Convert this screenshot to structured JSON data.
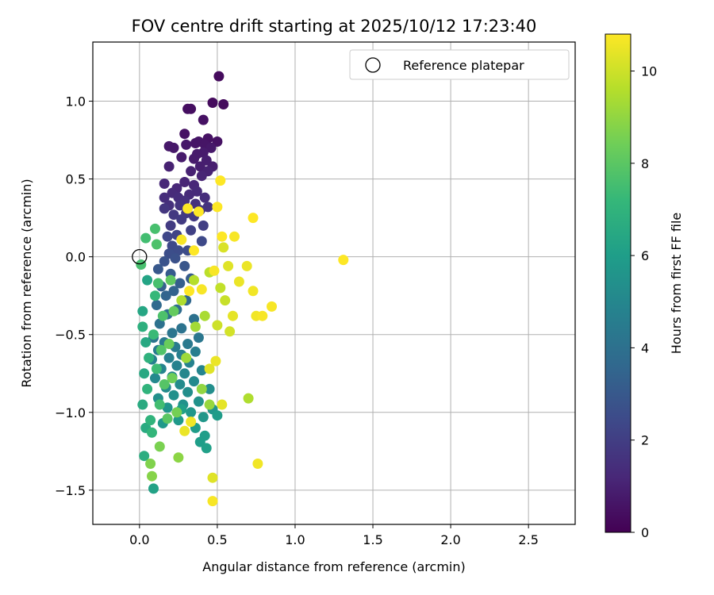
{
  "chart_data": {
    "type": "scatter",
    "title": "FOV centre drift starting at 2025/10/12 17:23:40",
    "xlabel": "Angular distance from reference (arcmin)",
    "ylabel": "Rotation from reference (arcmin)",
    "xlim": [
      -0.3,
      2.8
    ],
    "ylim": [
      -1.72,
      1.38
    ],
    "x_ticks": [
      0.0,
      0.5,
      1.0,
      1.5,
      2.0,
      2.5
    ],
    "y_ticks": [
      -1.5,
      -1.0,
      -0.5,
      0.0,
      0.5,
      1.0
    ],
    "x_tick_labels": [
      "0.0",
      "0.5",
      "1.0",
      "1.5",
      "2.0",
      "2.5"
    ],
    "y_tick_labels": [
      "−1.5",
      "−1.0",
      "−0.5",
      "0.0",
      "0.5",
      "1.0"
    ],
    "grid": true,
    "legend": {
      "location": "upper right",
      "label": "Reference platepar",
      "marker": "open-circle"
    },
    "reference_point": {
      "x": 0.0,
      "y": 0.0
    },
    "colorbar": {
      "label": "Hours from first FF file",
      "colormap": "viridis",
      "range": [
        0,
        10.8
      ],
      "ticks": [
        0,
        2,
        4,
        6,
        8,
        10
      ],
      "tick_labels": [
        "0",
        "2",
        "4",
        "6",
        "8",
        "10"
      ]
    },
    "viridis_stops": [
      "#440154",
      "#482878",
      "#3e4989",
      "#31688e",
      "#26828e",
      "#1f9e89",
      "#35b779",
      "#6ece58",
      "#b5de2b",
      "#fde725"
    ],
    "points": [
      [
        0.51,
        1.16,
        0.3
      ],
      [
        0.47,
        0.99,
        0.3
      ],
      [
        0.54,
        0.98,
        0.3
      ],
      [
        0.31,
        0.95,
        0.4
      ],
      [
        0.33,
        0.95,
        0.4
      ],
      [
        0.41,
        0.88,
        0.5
      ],
      [
        0.29,
        0.79,
        0.5
      ],
      [
        0.44,
        0.76,
        0.5
      ],
      [
        0.5,
        0.74,
        0.5
      ],
      [
        0.36,
        0.73,
        0.6
      ],
      [
        0.38,
        0.74,
        0.6
      ],
      [
        0.42,
        0.72,
        0.6
      ],
      [
        0.3,
        0.72,
        0.7
      ],
      [
        0.19,
        0.71,
        0.7
      ],
      [
        0.22,
        0.7,
        0.7
      ],
      [
        0.46,
        0.7,
        0.7
      ],
      [
        0.41,
        0.67,
        0.8
      ],
      [
        0.37,
        0.66,
        0.8
      ],
      [
        0.27,
        0.64,
        0.8
      ],
      [
        0.35,
        0.63,
        0.8
      ],
      [
        0.43,
        0.62,
        0.9
      ],
      [
        0.47,
        0.58,
        0.9
      ],
      [
        0.39,
        0.58,
        0.9
      ],
      [
        0.19,
        0.58,
        1.0
      ],
      [
        0.44,
        0.55,
        1.0
      ],
      [
        0.33,
        0.55,
        1.0
      ],
      [
        0.4,
        0.52,
        1.1
      ],
      [
        0.29,
        0.48,
        1.1
      ],
      [
        0.16,
        0.47,
        1.2
      ],
      [
        0.35,
        0.46,
        1.2
      ],
      [
        0.24,
        0.44,
        1.2
      ],
      [
        0.37,
        0.42,
        1.3
      ],
      [
        0.21,
        0.41,
        1.3
      ],
      [
        0.32,
        0.4,
        1.3
      ],
      [
        0.25,
        0.38,
        1.4
      ],
      [
        0.16,
        0.38,
        1.4
      ],
      [
        0.42,
        0.38,
        1.4
      ],
      [
        0.29,
        0.36,
        1.5
      ],
      [
        0.36,
        0.34,
        1.5
      ],
      [
        0.19,
        0.33,
        1.5
      ],
      [
        0.26,
        0.33,
        1.6
      ],
      [
        0.44,
        0.32,
        1.6
      ],
      [
        0.16,
        0.31,
        1.7
      ],
      [
        0.39,
        0.3,
        1.7
      ],
      [
        0.3,
        0.28,
        1.8
      ],
      [
        0.22,
        0.27,
        1.8
      ],
      [
        0.35,
        0.26,
        1.8
      ],
      [
        0.27,
        0.24,
        1.9
      ],
      [
        0.2,
        0.2,
        1.9
      ],
      [
        0.41,
        0.2,
        2.0
      ],
      [
        0.33,
        0.17,
        2.1
      ],
      [
        0.24,
        0.14,
        2.2
      ],
      [
        0.18,
        0.13,
        2.3
      ],
      [
        0.4,
        0.1,
        2.4
      ],
      [
        0.21,
        0.07,
        2.4
      ],
      [
        0.25,
        0.04,
        2.5
      ],
      [
        0.31,
        0.04,
        2.5
      ],
      [
        0.19,
        0.02,
        2.6
      ],
      [
        0.23,
        -0.01,
        2.7
      ],
      [
        0.16,
        -0.03,
        2.8
      ],
      [
        0.29,
        -0.06,
        2.9
      ],
      [
        0.12,
        -0.08,
        3.0
      ],
      [
        0.2,
        -0.11,
        3.1
      ],
      [
        0.33,
        -0.14,
        3.1
      ],
      [
        0.26,
        -0.17,
        3.2
      ],
      [
        0.14,
        -0.19,
        3.3
      ],
      [
        0.22,
        -0.22,
        3.4
      ],
      [
        0.17,
        -0.25,
        3.5
      ],
      [
        0.3,
        -0.28,
        3.6
      ],
      [
        0.11,
        -0.31,
        3.7
      ],
      [
        0.24,
        -0.34,
        3.8
      ],
      [
        0.18,
        -0.37,
        3.9
      ],
      [
        0.35,
        -0.4,
        4.0
      ],
      [
        0.13,
        -0.43,
        4.0
      ],
      [
        0.27,
        -0.46,
        4.1
      ],
      [
        0.21,
        -0.49,
        4.2
      ],
      [
        0.09,
        -0.52,
        4.2
      ],
      [
        0.38,
        -0.52,
        4.3
      ],
      [
        0.16,
        -0.55,
        4.4
      ],
      [
        0.31,
        -0.56,
        4.4
      ],
      [
        0.23,
        -0.58,
        4.5
      ],
      [
        0.12,
        -0.6,
        4.5
      ],
      [
        0.36,
        -0.61,
        4.6
      ],
      [
        0.27,
        -0.63,
        4.6
      ],
      [
        0.19,
        -0.65,
        4.7
      ],
      [
        0.08,
        -0.66,
        4.7
      ],
      [
        0.32,
        -0.68,
        4.8
      ],
      [
        0.24,
        -0.7,
        4.8
      ],
      [
        0.14,
        -0.72,
        4.9
      ],
      [
        0.4,
        -0.73,
        4.9
      ],
      [
        0.29,
        -0.75,
        5.0
      ],
      [
        0.21,
        -0.77,
        5.0
      ],
      [
        0.1,
        -0.78,
        5.1
      ],
      [
        0.35,
        -0.8,
        5.1
      ],
      [
        0.26,
        -0.82,
        5.2
      ],
      [
        0.17,
        -0.84,
        5.2
      ],
      [
        0.45,
        -0.85,
        5.3
      ],
      [
        0.31,
        -0.87,
        5.3
      ],
      [
        0.22,
        -0.89,
        5.4
      ],
      [
        0.12,
        -0.91,
        5.4
      ],
      [
        0.38,
        -0.93,
        5.5
      ],
      [
        0.28,
        -0.95,
        5.5
      ],
      [
        0.18,
        -0.97,
        5.6
      ],
      [
        0.47,
        -0.98,
        5.6
      ],
      [
        0.33,
        -1.0,
        5.7
      ],
      [
        0.41,
        -1.03,
        5.7
      ],
      [
        0.25,
        -1.05,
        5.8
      ],
      [
        0.15,
        -1.07,
        5.8
      ],
      [
        0.5,
        -1.02,
        5.9
      ],
      [
        0.36,
        -1.1,
        5.9
      ],
      [
        0.42,
        -1.15,
        6.0
      ],
      [
        0.39,
        -1.19,
        6.0
      ],
      [
        0.43,
        -1.23,
        6.1
      ],
      [
        0.27,
        -0.98,
        6.1
      ],
      [
        0.09,
        -1.49,
        6.2
      ],
      [
        0.05,
        -0.15,
        6.3
      ],
      [
        0.02,
        -0.35,
        6.4
      ],
      [
        0.04,
        -0.55,
        6.5
      ],
      [
        0.03,
        -0.75,
        6.5
      ],
      [
        0.02,
        -0.95,
        6.6
      ],
      [
        0.04,
        -1.1,
        6.6
      ],
      [
        0.03,
        -1.28,
        6.7
      ],
      [
        0.02,
        -0.45,
        6.8
      ],
      [
        0.06,
        -0.65,
        6.9
      ],
      [
        0.05,
        -0.85,
        7.0
      ],
      [
        0.07,
        -1.05,
        7.0
      ],
      [
        0.08,
        -1.13,
        7.1
      ],
      [
        0.1,
        -0.25,
        7.2
      ],
      [
        0.09,
        -0.5,
        7.3
      ],
      [
        0.11,
        -0.72,
        7.4
      ],
      [
        0.13,
        -0.95,
        7.5
      ],
      [
        0.12,
        -0.17,
        7.6
      ],
      [
        0.15,
        -0.38,
        7.7
      ],
      [
        0.14,
        -0.6,
        7.8
      ],
      [
        0.16,
        -0.82,
        7.9
      ],
      [
        0.18,
        -1.04,
        8.0
      ],
      [
        0.2,
        -0.15,
        8.1
      ],
      [
        0.22,
        -0.35,
        8.2
      ],
      [
        0.19,
        -0.56,
        8.3
      ],
      [
        0.21,
        -0.78,
        8.4
      ],
      [
        0.24,
        -1.0,
        8.5
      ],
      [
        0.04,
        0.12,
        7.5
      ],
      [
        0.1,
        0.18,
        7.6
      ],
      [
        0.11,
        0.08,
        7.7
      ],
      [
        0.01,
        -0.05,
        7.6
      ],
      [
        0.13,
        -1.22,
        8.6
      ],
      [
        0.07,
        -1.33,
        8.7
      ],
      [
        0.08,
        -1.41,
        8.8
      ],
      [
        0.25,
        -1.29,
        8.9
      ],
      [
        0.4,
        -0.85,
        9.0
      ],
      [
        0.45,
        -0.95,
        9.1
      ],
      [
        0.3,
        -0.65,
        9.2
      ],
      [
        0.36,
        -0.45,
        9.3
      ],
      [
        0.42,
        -0.38,
        9.4
      ],
      [
        0.27,
        -0.28,
        9.5
      ],
      [
        0.35,
        -0.15,
        9.6
      ],
      [
        0.45,
        -0.1,
        9.7
      ],
      [
        0.52,
        -0.2,
        9.8
      ],
      [
        0.55,
        -0.28,
        9.9
      ],
      [
        0.5,
        -0.44,
        10.0
      ],
      [
        0.58,
        -0.48,
        10.1
      ],
      [
        0.54,
        0.06,
        10.2
      ],
      [
        0.57,
        -0.06,
        10.3
      ],
      [
        0.6,
        -0.38,
        10.4
      ],
      [
        0.64,
        -0.16,
        10.5
      ],
      [
        0.69,
        -0.06,
        10.5
      ],
      [
        0.73,
        -0.22,
        10.6
      ],
      [
        0.75,
        -0.38,
        10.6
      ],
      [
        0.79,
        -0.38,
        10.7
      ],
      [
        0.85,
        -0.32,
        10.7
      ],
      [
        0.7,
        -0.91,
        9.5
      ],
      [
        0.76,
        -1.33,
        10.6
      ],
      [
        0.47,
        -1.42,
        10.3
      ],
      [
        0.47,
        -1.57,
        10.7
      ],
      [
        0.52,
        0.49,
        10.8
      ],
      [
        0.5,
        0.32,
        10.8
      ],
      [
        0.31,
        0.31,
        10.8
      ],
      [
        0.38,
        0.29,
        10.8
      ],
      [
        0.61,
        0.13,
        10.7
      ],
      [
        0.73,
        0.25,
        10.8
      ],
      [
        0.53,
        0.13,
        10.8
      ],
      [
        0.27,
        0.11,
        10.7
      ],
      [
        0.35,
        0.04,
        10.8
      ],
      [
        0.48,
        -0.09,
        10.7
      ],
      [
        0.4,
        -0.21,
        10.7
      ],
      [
        0.32,
        -0.22,
        10.8
      ],
      [
        0.29,
        -1.12,
        10.5
      ],
      [
        0.33,
        -1.06,
        10.6
      ],
      [
        0.53,
        -0.95,
        10.4
      ],
      [
        0.45,
        -0.72,
        10.3
      ],
      [
        0.49,
        -0.67,
        10.5
      ],
      [
        1.31,
        -0.02,
        10.8
      ]
    ]
  }
}
